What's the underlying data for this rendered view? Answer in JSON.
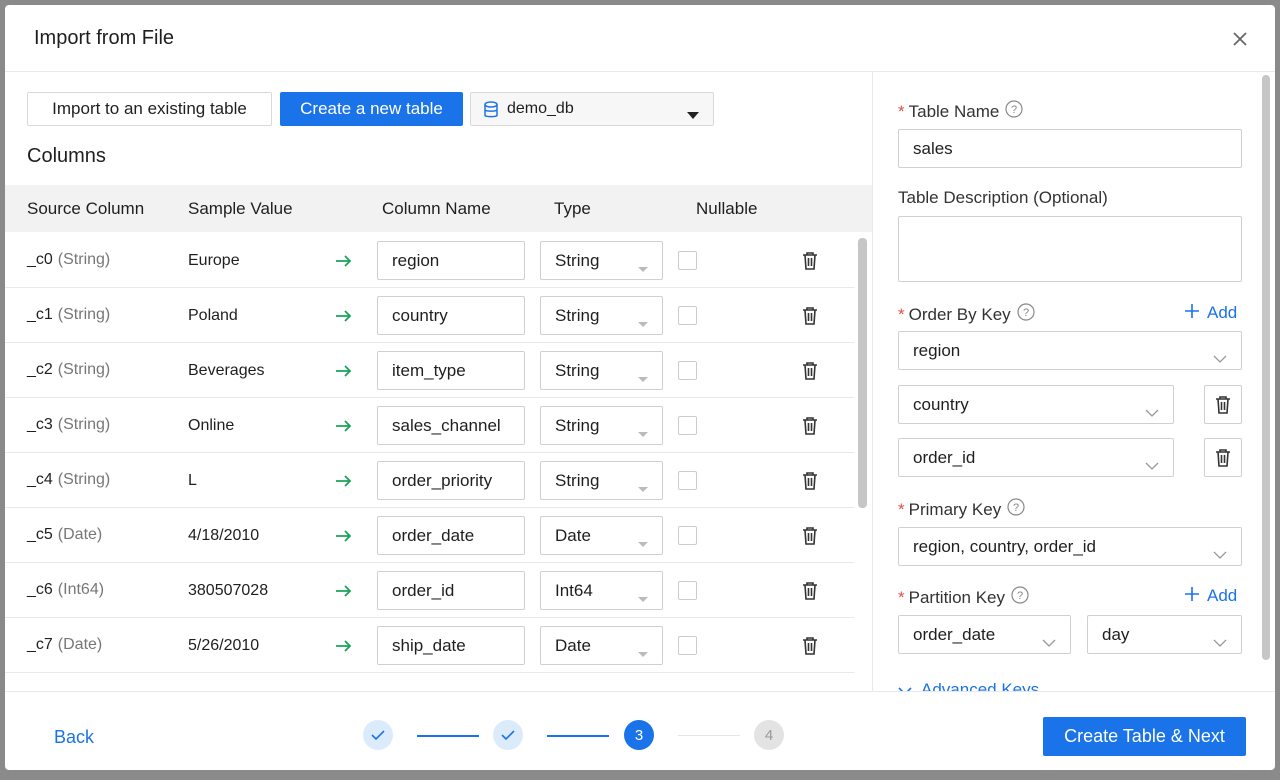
{
  "dialog": {
    "title": "Import from File"
  },
  "toolbar": {
    "existing": "Import to an existing table",
    "create": "Create a new table",
    "database": "demo_db"
  },
  "columns_title": "Columns",
  "table": {
    "headers": [
      "Source Column",
      "Sample Value",
      "Column Name",
      "Type",
      "Nullable"
    ],
    "rows": [
      [
        "_c0",
        "(String)",
        "Europe",
        "region",
        "String"
      ],
      [
        "_c1",
        "(String)",
        "Poland",
        "country",
        "String"
      ],
      [
        "_c2",
        "(String)",
        "Beverages",
        "item_type",
        "String"
      ],
      [
        "_c3",
        "(String)",
        "Online",
        "sales_channel",
        "String"
      ],
      [
        "_c4",
        "(String)",
        "L",
        "order_priority",
        "String"
      ],
      [
        "_c5",
        "(Date)",
        "4/18/2010",
        "order_date",
        "Date"
      ],
      [
        "_c6",
        "(Int64)",
        "380507028",
        "order_id",
        "Int64"
      ],
      [
        "_c7",
        "(Date)",
        "5/26/2010",
        "ship_date",
        "Date"
      ]
    ]
  },
  "form": {
    "table_name_label": "Table Name",
    "table_name": "sales",
    "description_label": "Table Description (Optional)",
    "order_by_label": "Order By Key",
    "add": "Add",
    "order_by": [
      "region",
      "country",
      "order_id"
    ],
    "primary_key_label": "Primary Key",
    "primary_key": "region, country, order_id",
    "partition_label": "Partition Key",
    "partition": [
      "order_date",
      "day"
    ],
    "advanced": "Advanced Keys"
  },
  "footer": {
    "back": "Back",
    "steps": [
      "3",
      "4"
    ],
    "next": "Create Table & Next"
  }
}
